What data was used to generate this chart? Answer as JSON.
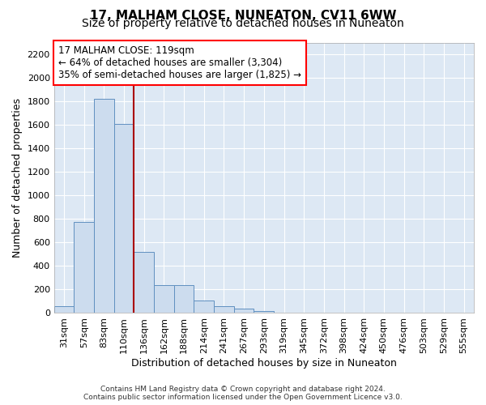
{
  "title": "17, MALHAM CLOSE, NUNEATON, CV11 6WW",
  "subtitle": "Size of property relative to detached houses in Nuneaton",
  "xlabel": "Distribution of detached houses by size in Nuneaton",
  "ylabel": "Number of detached properties",
  "bar_labels": [
    "31sqm",
    "57sqm",
    "83sqm",
    "110sqm",
    "136sqm",
    "162sqm",
    "188sqm",
    "214sqm",
    "241sqm",
    "267sqm",
    "293sqm",
    "319sqm",
    "345sqm",
    "372sqm",
    "398sqm",
    "424sqm",
    "450sqm",
    "476sqm",
    "503sqm",
    "529sqm",
    "555sqm"
  ],
  "bar_values": [
    55,
    775,
    1820,
    1610,
    520,
    238,
    238,
    105,
    55,
    38,
    20,
    0,
    0,
    0,
    0,
    0,
    0,
    0,
    0,
    0,
    0
  ],
  "bar_color": "#ccdcee",
  "bar_edge_color": "#6090c0",
  "reference_line_x": 3.5,
  "reference_line_color": "#aa0000",
  "annotation_line1": "17 MALHAM CLOSE: 119sqm",
  "annotation_line2": "← 64% of detached houses are smaller (3,304)",
  "annotation_line3": "35% of semi-detached houses are larger (1,825) →",
  "ylim": [
    0,
    2300
  ],
  "yticks": [
    0,
    200,
    400,
    600,
    800,
    1000,
    1200,
    1400,
    1600,
    1800,
    2000,
    2200
  ],
  "background_color": "#dde8f4",
  "grid_color": "white",
  "footer_line1": "Contains HM Land Registry data © Crown copyright and database right 2024.",
  "footer_line2": "Contains public sector information licensed under the Open Government Licence v3.0.",
  "title_fontsize": 11,
  "subtitle_fontsize": 10,
  "tick_fontsize": 8,
  "ylabel_fontsize": 9,
  "xlabel_fontsize": 9,
  "annotation_fontsize": 8.5,
  "footer_fontsize": 6.5
}
